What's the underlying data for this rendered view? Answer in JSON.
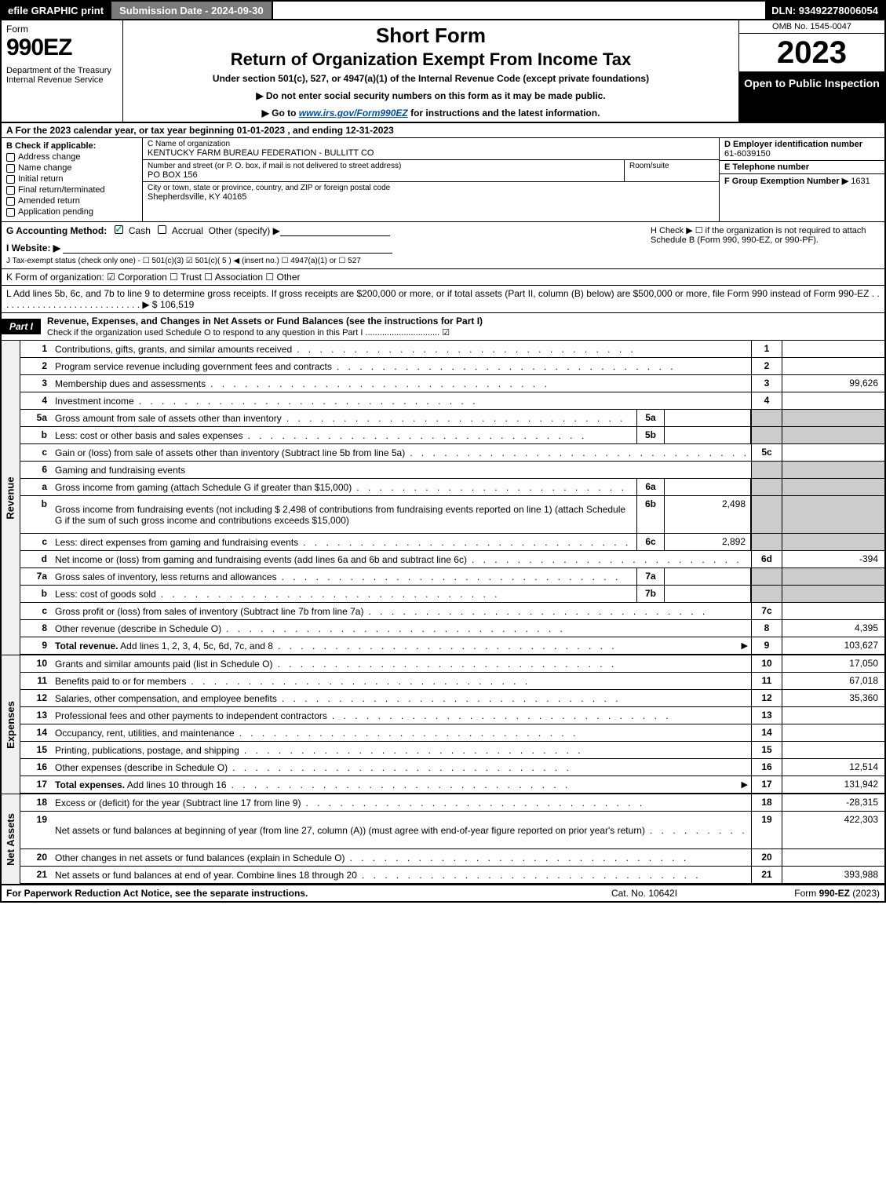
{
  "topbar": {
    "efile": "efile GRAPHIC print",
    "subdate": "Submission Date - 2024-09-30",
    "dln": "DLN: 93492278006054"
  },
  "header": {
    "form_word": "Form",
    "form_number": "990EZ",
    "dept": "Department of the Treasury\nInternal Revenue Service",
    "short": "Short Form",
    "return_title": "Return of Organization Exempt From Income Tax",
    "under": "Under section 501(c), 527, or 4947(a)(1) of the Internal Revenue Code (except private foundations)",
    "note1": "▶ Do not enter social security numbers on this form as it may be made public.",
    "note2_pre": "▶ Go to ",
    "note2_link": "www.irs.gov/Form990EZ",
    "note2_post": " for instructions and the latest information.",
    "omb": "OMB No. 1545-0047",
    "year": "2023",
    "open": "Open to Public Inspection"
  },
  "section_a": "A  For the 2023 calendar year, or tax year beginning 01-01-2023 , and ending 12-31-2023",
  "col_b": {
    "label": "B  Check if applicable:",
    "items": [
      "Address change",
      "Name change",
      "Initial return",
      "Final return/terminated",
      "Amended return",
      "Application pending"
    ]
  },
  "col_c": {
    "name_label": "C Name of organization",
    "name": "KENTUCKY FARM BUREAU FEDERATION - BULLITT CO",
    "addr_label": "Number and street (or P. O. box, if mail is not delivered to street address)",
    "addr": "PO BOX 156",
    "room_label": "Room/suite",
    "city_label": "City or town, state or province, country, and ZIP or foreign postal code",
    "city": "Shepherdsville, KY  40165"
  },
  "col_d": {
    "ein_label": "D Employer identification number",
    "ein": "61-6039150",
    "tel_label": "E Telephone number",
    "tel": "",
    "group_label": "F Group Exemption Number  ▶",
    "group": "1631"
  },
  "line_g": {
    "label": "G Accounting Method:",
    "cash": "Cash",
    "accrual": "Accrual",
    "other": "Other (specify) ▶"
  },
  "line_h": "H  Check ▶ ☐ if the organization is not required to attach Schedule B (Form 990, 990-EZ, or 990-PF).",
  "line_i": "I Website: ▶",
  "line_j": "J Tax-exempt status (check only one) - ☐ 501(c)(3)  ☑ 501(c)( 5 ) ◀ (insert no.) ☐ 4947(a)(1) or ☐ 527",
  "line_k": "K Form of organization:  ☑ Corporation  ☐ Trust  ☐ Association  ☐ Other",
  "line_l": "L Add lines 5b, 6c, and 7b to line 9 to determine gross receipts. If gross receipts are $200,000 or more, or if total assets (Part II, column (B) below) are $500,000 or more, file Form 990 instead of Form 990-EZ  .  .  .  .  .  .  .  .  .  .  .  .  .  .  .  .  .  .  .  .  .  .  .  .  .  .  .  .  ▶ $ 106,519",
  "part1": {
    "badge": "Part I",
    "title": "Revenue, Expenses, and Changes in Net Assets or Fund Balances (see the instructions for Part I)",
    "sub": "Check if the organization used Schedule O to respond to any question in this Part I ............................... ☑"
  },
  "revenue_rows": [
    {
      "n": "1",
      "d": "Contributions, gifts, grants, and similar amounts received",
      "rn": "1",
      "rv": ""
    },
    {
      "n": "2",
      "d": "Program service revenue including government fees and contracts",
      "rn": "2",
      "rv": ""
    },
    {
      "n": "3",
      "d": "Membership dues and assessments",
      "rn": "3",
      "rv": "99,626"
    },
    {
      "n": "4",
      "d": "Investment income",
      "rn": "4",
      "rv": ""
    },
    {
      "n": "5a",
      "d": "Gross amount from sale of assets other than inventory",
      "sn": "5a",
      "sv": "",
      "shaded": true
    },
    {
      "n": "b",
      "d": "Less: cost or other basis and sales expenses",
      "sn": "5b",
      "sv": "",
      "shaded": true
    },
    {
      "n": "c",
      "d": "Gain or (loss) from sale of assets other than inventory (Subtract line 5b from line 5a)",
      "rn": "5c",
      "rv": ""
    },
    {
      "n": "6",
      "d": "Gaming and fundraising events",
      "shaded": true,
      "header": true
    },
    {
      "n": "a",
      "d": "Gross income from gaming (attach Schedule G if greater than $15,000)",
      "sn": "6a",
      "sv": "",
      "shaded": true
    },
    {
      "n": "b",
      "d": "Gross income from fundraising events (not including $  2,498          of contributions from fundraising events reported on line 1) (attach Schedule G if the sum of such gross income and contributions exceeds $15,000)",
      "sn": "6b",
      "sv": "2,498",
      "shaded": true,
      "tall": true
    },
    {
      "n": "c",
      "d": "Less: direct expenses from gaming and fundraising events",
      "sn": "6c",
      "sv": "2,892",
      "shaded": true
    },
    {
      "n": "d",
      "d": "Net income or (loss) from gaming and fundraising events (add lines 6a and 6b and subtract line 6c)",
      "rn": "6d",
      "rv": "-394"
    },
    {
      "n": "7a",
      "d": "Gross sales of inventory, less returns and allowances",
      "sn": "7a",
      "sv": "",
      "shaded": true
    },
    {
      "n": "b",
      "d": "Less: cost of goods sold",
      "sn": "7b",
      "sv": "",
      "shaded": true
    },
    {
      "n": "c",
      "d": "Gross profit or (loss) from sales of inventory (Subtract line 7b from line 7a)",
      "rn": "7c",
      "rv": ""
    },
    {
      "n": "8",
      "d": "Other revenue (describe in Schedule O)",
      "rn": "8",
      "rv": "4,395"
    },
    {
      "n": "9",
      "d": "Total revenue. Add lines 1, 2, 3, 4, 5c, 6d, 7c, and 8",
      "rn": "9",
      "rv": "103,627",
      "bold": true,
      "arrow": true
    }
  ],
  "expense_rows": [
    {
      "n": "10",
      "d": "Grants and similar amounts paid (list in Schedule O)",
      "rn": "10",
      "rv": "17,050"
    },
    {
      "n": "11",
      "d": "Benefits paid to or for members",
      "rn": "11",
      "rv": "67,018"
    },
    {
      "n": "12",
      "d": "Salaries, other compensation, and employee benefits",
      "rn": "12",
      "rv": "35,360"
    },
    {
      "n": "13",
      "d": "Professional fees and other payments to independent contractors",
      "rn": "13",
      "rv": ""
    },
    {
      "n": "14",
      "d": "Occupancy, rent, utilities, and maintenance",
      "rn": "14",
      "rv": ""
    },
    {
      "n": "15",
      "d": "Printing, publications, postage, and shipping",
      "rn": "15",
      "rv": ""
    },
    {
      "n": "16",
      "d": "Other expenses (describe in Schedule O)",
      "rn": "16",
      "rv": "12,514"
    },
    {
      "n": "17",
      "d": "Total expenses. Add lines 10 through 16",
      "rn": "17",
      "rv": "131,942",
      "bold": true,
      "arrow": true
    }
  ],
  "netasset_rows": [
    {
      "n": "18",
      "d": "Excess or (deficit) for the year (Subtract line 17 from line 9)",
      "rn": "18",
      "rv": "-28,315"
    },
    {
      "n": "19",
      "d": "Net assets or fund balances at beginning of year (from line 27, column (A)) (must agree with end-of-year figure reported on prior year's return)",
      "rn": "19",
      "rv": "422,303",
      "tall": true
    },
    {
      "n": "20",
      "d": "Other changes in net assets or fund balances (explain in Schedule O)",
      "rn": "20",
      "rv": ""
    },
    {
      "n": "21",
      "d": "Net assets or fund balances at end of year. Combine lines 18 through 20",
      "rn": "21",
      "rv": "393,988"
    }
  ],
  "side_labels": {
    "rev": "Revenue",
    "exp": "Expenses",
    "net": "Net Assets"
  },
  "footer": {
    "left": "For Paperwork Reduction Act Notice, see the separate instructions.",
    "center": "Cat. No. 10642I",
    "right_pre": "Form ",
    "right_bold": "990-EZ",
    "right_post": " (2023)"
  }
}
